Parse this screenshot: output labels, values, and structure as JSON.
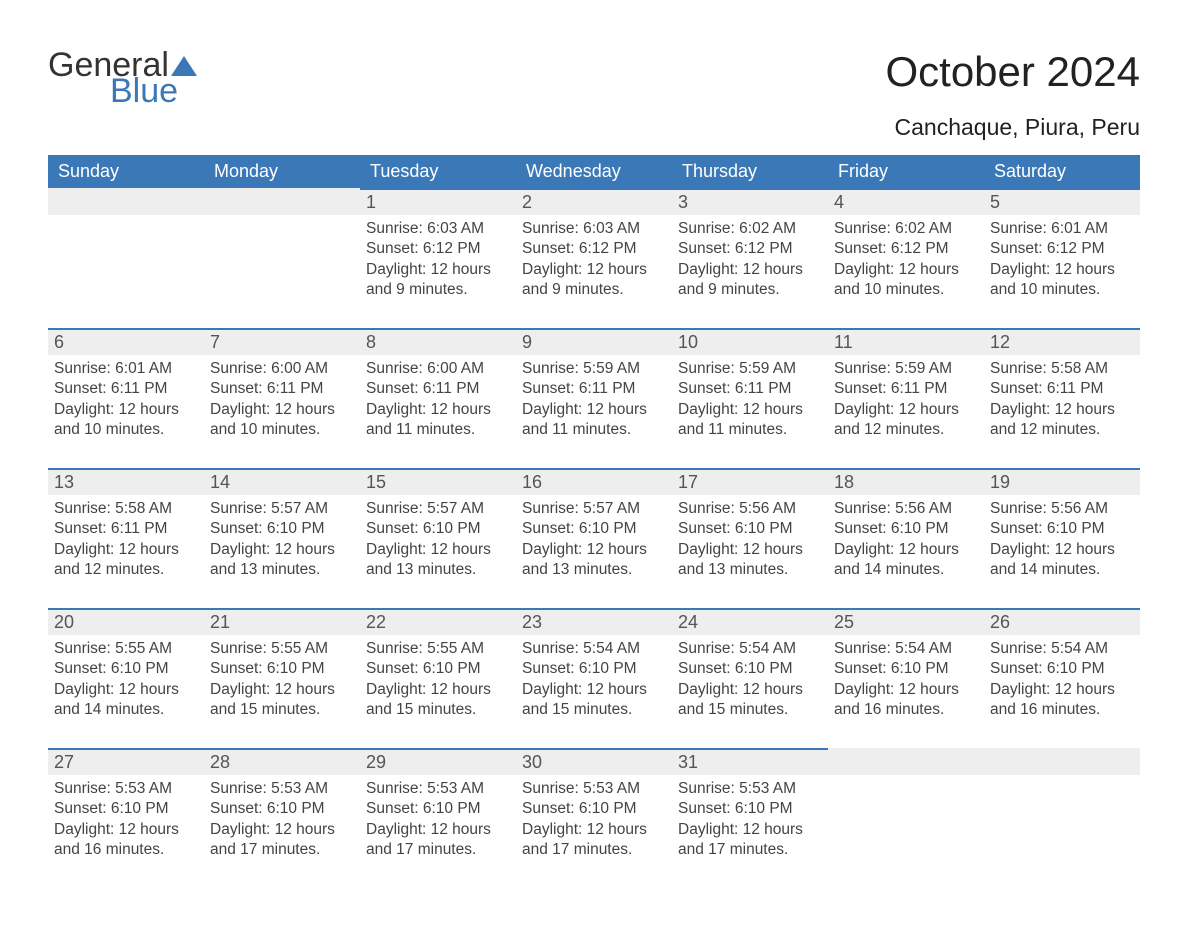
{
  "logo": {
    "word1": "General",
    "word2": "Blue"
  },
  "title": "October 2024",
  "subtitle": "Canchaque, Piura, Peru",
  "colors": {
    "accent": "#3b78b8",
    "header_row_bg": "#3b78b8",
    "header_row_text": "#ffffff",
    "daynum_bg": "#eeeeee",
    "daynum_border": "#3b78b8",
    "body_text": "#444444"
  },
  "font_sizes_pt": {
    "title": 32,
    "subtitle": 17,
    "header": 14,
    "daynum": 14,
    "body": 12
  },
  "weekdays": [
    "Sunday",
    "Monday",
    "Tuesday",
    "Wednesday",
    "Thursday",
    "Friday",
    "Saturday"
  ],
  "weeks": [
    [
      null,
      null,
      {
        "d": "1",
        "sr": "6:03 AM",
        "ss": "6:12 PM",
        "dl": "12 hours and 9 minutes."
      },
      {
        "d": "2",
        "sr": "6:03 AM",
        "ss": "6:12 PM",
        "dl": "12 hours and 9 minutes."
      },
      {
        "d": "3",
        "sr": "6:02 AM",
        "ss": "6:12 PM",
        "dl": "12 hours and 9 minutes."
      },
      {
        "d": "4",
        "sr": "6:02 AM",
        "ss": "6:12 PM",
        "dl": "12 hours and 10 minutes."
      },
      {
        "d": "5",
        "sr": "6:01 AM",
        "ss": "6:12 PM",
        "dl": "12 hours and 10 minutes."
      }
    ],
    [
      {
        "d": "6",
        "sr": "6:01 AM",
        "ss": "6:11 PM",
        "dl": "12 hours and 10 minutes."
      },
      {
        "d": "7",
        "sr": "6:00 AM",
        "ss": "6:11 PM",
        "dl": "12 hours and 10 minutes."
      },
      {
        "d": "8",
        "sr": "6:00 AM",
        "ss": "6:11 PM",
        "dl": "12 hours and 11 minutes."
      },
      {
        "d": "9",
        "sr": "5:59 AM",
        "ss": "6:11 PM",
        "dl": "12 hours and 11 minutes."
      },
      {
        "d": "10",
        "sr": "5:59 AM",
        "ss": "6:11 PM",
        "dl": "12 hours and 11 minutes."
      },
      {
        "d": "11",
        "sr": "5:59 AM",
        "ss": "6:11 PM",
        "dl": "12 hours and 12 minutes."
      },
      {
        "d": "12",
        "sr": "5:58 AM",
        "ss": "6:11 PM",
        "dl": "12 hours and 12 minutes."
      }
    ],
    [
      {
        "d": "13",
        "sr": "5:58 AM",
        "ss": "6:11 PM",
        "dl": "12 hours and 12 minutes."
      },
      {
        "d": "14",
        "sr": "5:57 AM",
        "ss": "6:10 PM",
        "dl": "12 hours and 13 minutes."
      },
      {
        "d": "15",
        "sr": "5:57 AM",
        "ss": "6:10 PM",
        "dl": "12 hours and 13 minutes."
      },
      {
        "d": "16",
        "sr": "5:57 AM",
        "ss": "6:10 PM",
        "dl": "12 hours and 13 minutes."
      },
      {
        "d": "17",
        "sr": "5:56 AM",
        "ss": "6:10 PM",
        "dl": "12 hours and 13 minutes."
      },
      {
        "d": "18",
        "sr": "5:56 AM",
        "ss": "6:10 PM",
        "dl": "12 hours and 14 minutes."
      },
      {
        "d": "19",
        "sr": "5:56 AM",
        "ss": "6:10 PM",
        "dl": "12 hours and 14 minutes."
      }
    ],
    [
      {
        "d": "20",
        "sr": "5:55 AM",
        "ss": "6:10 PM",
        "dl": "12 hours and 14 minutes."
      },
      {
        "d": "21",
        "sr": "5:55 AM",
        "ss": "6:10 PM",
        "dl": "12 hours and 15 minutes."
      },
      {
        "d": "22",
        "sr": "5:55 AM",
        "ss": "6:10 PM",
        "dl": "12 hours and 15 minutes."
      },
      {
        "d": "23",
        "sr": "5:54 AM",
        "ss": "6:10 PM",
        "dl": "12 hours and 15 minutes."
      },
      {
        "d": "24",
        "sr": "5:54 AM",
        "ss": "6:10 PM",
        "dl": "12 hours and 15 minutes."
      },
      {
        "d": "25",
        "sr": "5:54 AM",
        "ss": "6:10 PM",
        "dl": "12 hours and 16 minutes."
      },
      {
        "d": "26",
        "sr": "5:54 AM",
        "ss": "6:10 PM",
        "dl": "12 hours and 16 minutes."
      }
    ],
    [
      {
        "d": "27",
        "sr": "5:53 AM",
        "ss": "6:10 PM",
        "dl": "12 hours and 16 minutes."
      },
      {
        "d": "28",
        "sr": "5:53 AM",
        "ss": "6:10 PM",
        "dl": "12 hours and 17 minutes."
      },
      {
        "d": "29",
        "sr": "5:53 AM",
        "ss": "6:10 PM",
        "dl": "12 hours and 17 minutes."
      },
      {
        "d": "30",
        "sr": "5:53 AM",
        "ss": "6:10 PM",
        "dl": "12 hours and 17 minutes."
      },
      {
        "d": "31",
        "sr": "5:53 AM",
        "ss": "6:10 PM",
        "dl": "12 hours and 17 minutes."
      },
      null,
      null
    ]
  ],
  "labels": {
    "sunrise": "Sunrise: ",
    "sunset": "Sunset: ",
    "daylight": "Daylight: "
  }
}
